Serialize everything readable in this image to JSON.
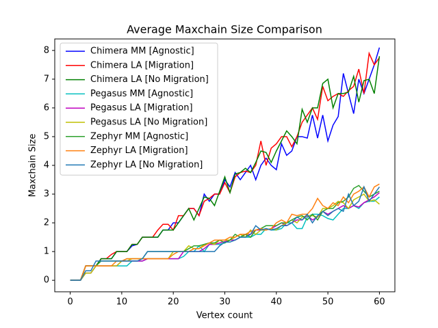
{
  "chart_data": {
    "type": "line",
    "title": "Average Maxchain Size Comparison",
    "x_label": "Vertex count",
    "y_label": "Maxchain Size",
    "x": [
      0,
      1,
      2,
      3,
      4,
      5,
      6,
      7,
      8,
      9,
      10,
      11,
      12,
      13,
      14,
      15,
      16,
      17,
      18,
      19,
      20,
      21,
      22,
      23,
      24,
      25,
      26,
      27,
      28,
      29,
      30,
      31,
      32,
      33,
      34,
      35,
      36,
      37,
      38,
      39,
      40,
      41,
      42,
      43,
      44,
      45,
      46,
      47,
      48,
      49,
      50,
      51,
      52,
      53,
      54,
      55,
      56,
      57,
      58,
      59,
      60
    ],
    "xlim": [
      -3,
      63
    ],
    "xticks": [
      0,
      10,
      20,
      30,
      40,
      50,
      60
    ],
    "ylim": [
      -0.4,
      8.4
    ],
    "yticks": [
      0,
      1,
      2,
      3,
      4,
      5,
      6,
      7,
      8
    ],
    "legend": "upper left",
    "series": [
      {
        "name": "Chimera MM [Agnostic]",
        "color": "#0000ff",
        "values": [
          0,
          0,
          0,
          0.5,
          0.5,
          0.5,
          0.75,
          0.75,
          0.75,
          1,
          1,
          1,
          1.2,
          1.25,
          1.5,
          1.5,
          1.5,
          1.5,
          1.75,
          1.75,
          2,
          2,
          2.25,
          2.5,
          2.5,
          2.25,
          3,
          2.75,
          3,
          3,
          3.5,
          3.25,
          3.75,
          3.5,
          3.75,
          4,
          3.5,
          4,
          4.25,
          4,
          3.85,
          4.75,
          4.35,
          4.5,
          5,
          5,
          4.95,
          5.75,
          4.95,
          5.75,
          4.85,
          5.4,
          5.7,
          7.2,
          6.5,
          5.8,
          7,
          6.5,
          7,
          7.5,
          8.1
        ]
      },
      {
        "name": "Chimera LA [Migration]",
        "color": "#ff0000",
        "values": [
          0,
          0,
          0,
          0.5,
          0.5,
          0.5,
          0.75,
          0.75,
          0.9,
          1,
          1,
          1,
          1.25,
          1.25,
          1.5,
          1.5,
          1.5,
          1.75,
          1.95,
          1.95,
          1.75,
          2.25,
          2.25,
          2.5,
          2.5,
          2.25,
          2.75,
          2.85,
          3,
          3,
          3.4,
          3.05,
          3.6,
          3.75,
          3.8,
          3.75,
          4,
          4.85,
          4,
          4.6,
          4.75,
          5,
          5,
          4.65,
          5,
          5.5,
          5.75,
          6,
          5.6,
          6.75,
          6.25,
          6.4,
          6.5,
          6.4,
          6.6,
          6.75,
          7.35,
          6.5,
          7.9,
          7.5,
          7.75
        ]
      },
      {
        "name": "Chimera LA [No Migration]",
        "color": "#008000",
        "values": [
          0,
          0,
          0,
          0.5,
          0.5,
          0.5,
          0.75,
          0.75,
          0.75,
          1,
          1,
          1,
          1.25,
          1.25,
          1.5,
          1.5,
          1.5,
          1.5,
          1.75,
          1.75,
          1.75,
          2,
          2.25,
          2.5,
          2.1,
          2.5,
          2.9,
          2.85,
          2.6,
          3.1,
          3.6,
          3.05,
          3.7,
          3.75,
          3.9,
          3.75,
          4.1,
          4.5,
          4.45,
          4.1,
          4.5,
          4.85,
          5.2,
          5,
          4.75,
          5.95,
          5.5,
          6,
          6,
          6.85,
          7,
          6,
          6.5,
          6.5,
          6.55,
          7.1,
          6.2,
          6.95,
          7,
          6.5,
          7.8
        ]
      },
      {
        "name": "Pegasus MM [Agnostic]",
        "color": "#00bfbf",
        "values": [
          0,
          0,
          0,
          0.25,
          0.25,
          0.5,
          0.5,
          0.5,
          0.5,
          0.5,
          0.5,
          0.5,
          0.67,
          0.67,
          0.67,
          0.75,
          0.75,
          0.75,
          0.75,
          0.75,
          0.75,
          0.75,
          0.83,
          1,
          1,
          1.2,
          1,
          1.25,
          1.25,
          1.25,
          1.3,
          1.4,
          1.4,
          1.5,
          1.5,
          1.5,
          1.6,
          1.6,
          1.8,
          1.75,
          1.75,
          1.8,
          2,
          2,
          1.8,
          1.8,
          2.2,
          2.3,
          2.3,
          2.25,
          2.15,
          2.1,
          2.3,
          2.5,
          2.5,
          2.6,
          2.5,
          2.7,
          2.75,
          2.75,
          2.9
        ]
      },
      {
        "name": "Pegasus LA [Migration]",
        "color": "#bf00bf",
        "values": [
          0,
          0,
          0,
          0.25,
          0.25,
          0.5,
          0.5,
          0.5,
          0.5,
          0.5,
          0.67,
          0.67,
          0.67,
          0.67,
          0.67,
          0.75,
          0.75,
          0.75,
          0.75,
          0.75,
          0.75,
          0.75,
          1,
          1,
          1,
          1,
          1.1,
          1.25,
          1.25,
          1.3,
          1.35,
          1.4,
          1.4,
          1.5,
          1.6,
          1.6,
          1.75,
          1.75,
          1.75,
          1.8,
          1.9,
          2,
          1.9,
          2,
          2.1,
          2.1,
          2.25,
          2.1,
          2.2,
          2.4,
          2.3,
          2.4,
          2.5,
          2.6,
          2.5,
          2.6,
          2.55,
          2.7,
          2.8,
          2.9,
          3.05
        ]
      },
      {
        "name": "Pegasus LA [No Migration]",
        "color": "#bfbf00",
        "values": [
          0,
          0,
          0,
          0.25,
          0.25,
          0.5,
          0.5,
          0.5,
          0.5,
          0.5,
          0.67,
          0.67,
          0.75,
          0.75,
          0.75,
          0.75,
          0.75,
          0.75,
          0.75,
          0.75,
          1,
          1,
          1,
          1.2,
          1.1,
          1.1,
          1.25,
          1.3,
          1.25,
          1.4,
          1.4,
          1.4,
          1.5,
          1.6,
          1.5,
          1.75,
          1.6,
          1.75,
          1.75,
          1.8,
          1.75,
          1.9,
          2,
          2.1,
          2,
          2.2,
          2.25,
          2.25,
          2.2,
          2.5,
          2.5,
          2.6,
          2.75,
          2.7,
          2.5,
          2.8,
          2.9,
          3,
          2.75,
          2.8,
          2.65
        ]
      },
      {
        "name": "Zephyr MM [Agnostic]",
        "color": "#2ca02c",
        "values": [
          0,
          0,
          0,
          0.5,
          0.5,
          0.5,
          0.67,
          0.67,
          0.67,
          0.67,
          0.67,
          0.75,
          0.75,
          0.75,
          0.75,
          1,
          1,
          1,
          1,
          1,
          1,
          1,
          1,
          1.1,
          1.2,
          1.2,
          1.25,
          1.3,
          1.3,
          1.4,
          1.3,
          1.4,
          1.6,
          1.5,
          1.6,
          1.5,
          1.75,
          1.8,
          1.9,
          1.9,
          1.9,
          2,
          2,
          2.1,
          2.2,
          2.25,
          2.1,
          2.3,
          2.1,
          2.4,
          2.5,
          2.5,
          2.7,
          2.75,
          2.9,
          3.2,
          3.3,
          3.1,
          2.9,
          3,
          3.1
        ]
      },
      {
        "name": "Zephyr LA [Migration]",
        "color": "#ff7f0e",
        "values": [
          0,
          0,
          0,
          0.5,
          0.5,
          0.5,
          0.5,
          0.5,
          0.5,
          0.67,
          0.67,
          0.75,
          0.75,
          0.75,
          0.75,
          0.75,
          0.75,
          0.75,
          0.75,
          0.75,
          0.9,
          1,
          1,
          1,
          1.1,
          1.1,
          1.2,
          1.3,
          1.4,
          1.4,
          1.4,
          1.5,
          1.5,
          1.6,
          1.6,
          1.7,
          1.75,
          1.8,
          1.75,
          1.8,
          2,
          2.1,
          2,
          2.3,
          2.25,
          2.3,
          2.3,
          2.5,
          2.85,
          2.6,
          2.5,
          2.7,
          2.6,
          2.9,
          2.7,
          3,
          3.1,
          3.25,
          2.9,
          3.25,
          3.35
        ]
      },
      {
        "name": "Zephyr LA [No Migration]",
        "color": "#1f77b4",
        "values": [
          0,
          0,
          0,
          0.33,
          0.33,
          0.67,
          0.67,
          0.67,
          0.67,
          0.67,
          0.67,
          0.67,
          0.67,
          0.67,
          0.75,
          1,
          1,
          1,
          1,
          1,
          1,
          1,
          1,
          1,
          1,
          1,
          1,
          1,
          1,
          1.2,
          1.33,
          1.33,
          1.4,
          1.5,
          1.5,
          1.6,
          1.9,
          1.75,
          1.8,
          1.75,
          1.8,
          1.9,
          1.9,
          2,
          2.2,
          2.1,
          2.3,
          2,
          2.25,
          2.4,
          2.25,
          2.4,
          2.5,
          2.4,
          3,
          2.6,
          2.75,
          3.25,
          2.75,
          3,
          3.25
        ]
      }
    ]
  }
}
